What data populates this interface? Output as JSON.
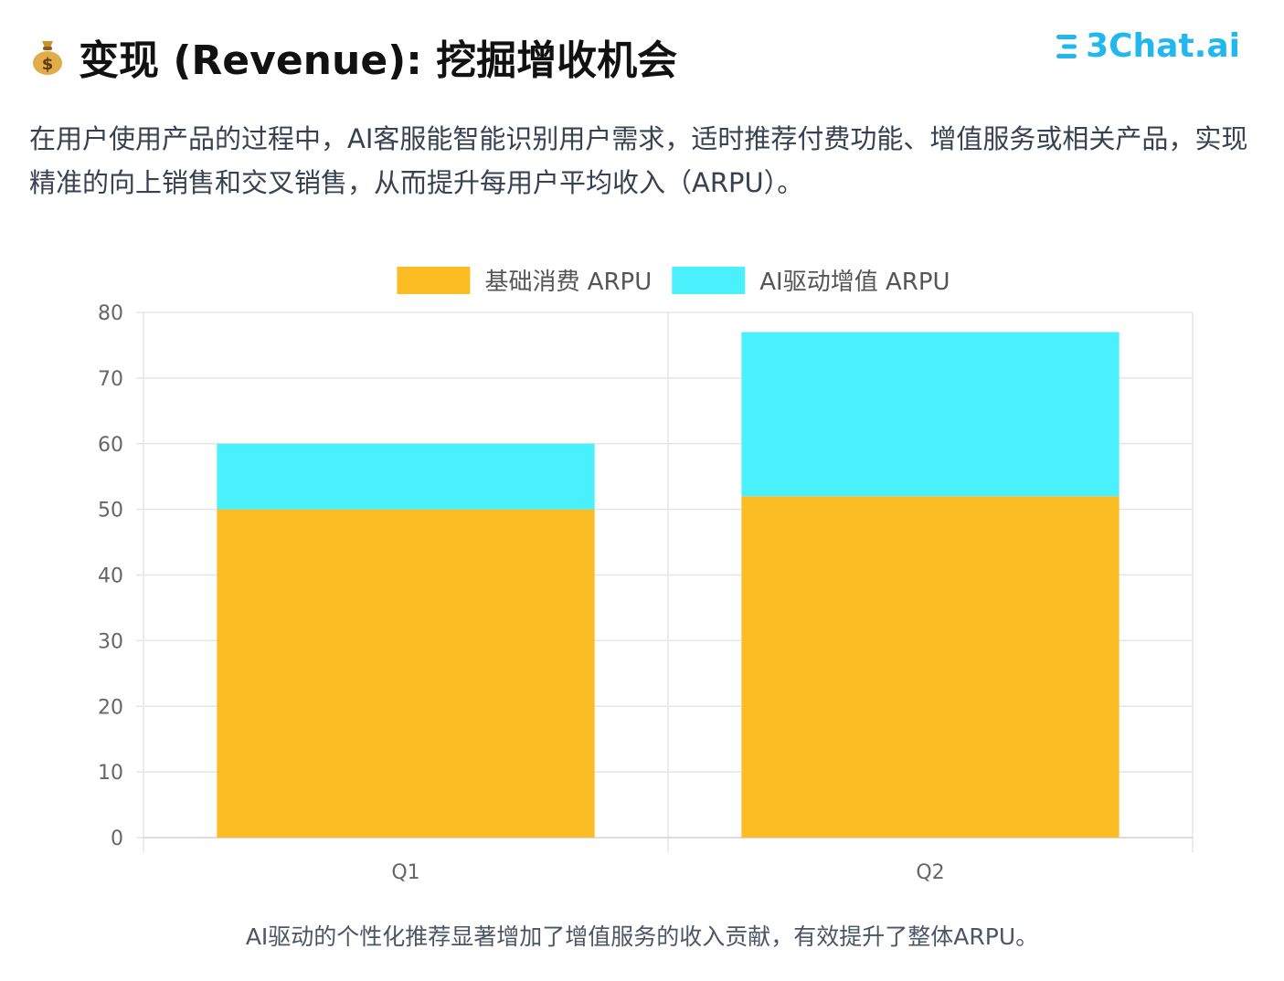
{
  "header": {
    "title": "变现 (Revenue): 挖掘增收机会",
    "title_icon": "money-bag-icon",
    "logo_text": "3Chat.ai"
  },
  "intro": "在用户使用产品的过程中，AI客服能智能识别用户需求，适时推荐付费功能、增值服务或相关产品，实现精准的向上销售和交叉销售，从而提升每用户平均收入（ARPU）。",
  "caption": "AI驱动的个性化推荐显著增加了增值服务的收入贡献，有效提升了整体ARPU。",
  "chart_data": {
    "type": "bar",
    "stacked": true,
    "categories": [
      "Q1",
      "Q2"
    ],
    "series": [
      {
        "name": "基础消费 ARPU",
        "values": [
          50,
          52
        ],
        "color": "#fbbd23"
      },
      {
        "name": "AI驱动增值 ARPU",
        "values": [
          10,
          25
        ],
        "color": "#4af0fb"
      }
    ],
    "ylim": [
      0,
      80
    ],
    "yticks": [
      0,
      10,
      20,
      30,
      40,
      50,
      60,
      70,
      80
    ],
    "grid": true,
    "legend": "top-center"
  }
}
